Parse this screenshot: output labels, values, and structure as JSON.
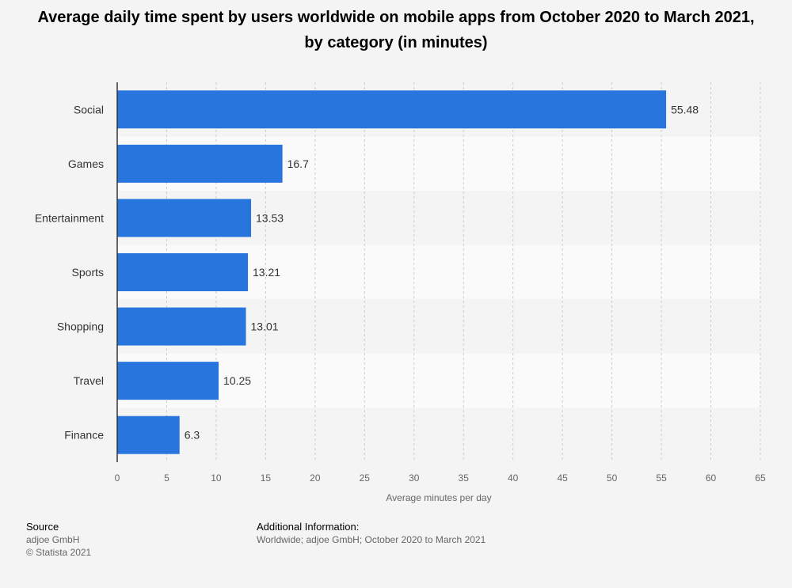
{
  "chart_data": {
    "type": "bar",
    "orientation": "horizontal",
    "title": "Average daily time spent by users worldwide on mobile apps from October 2020 to March 2021, by category (in minutes)",
    "categories": [
      "Social",
      "Games",
      "Entertainment",
      "Sports",
      "Shopping",
      "Travel",
      "Finance"
    ],
    "values": [
      55.48,
      16.7,
      13.53,
      13.21,
      13.01,
      10.25,
      6.3
    ],
    "value_labels": [
      "55.48",
      "16.7",
      "13.53",
      "13.21",
      "13.01",
      "10.25",
      "6.3"
    ],
    "xlabel": "Average minutes per day",
    "ylabel": "",
    "xlim": [
      0,
      65
    ],
    "xticks": [
      0,
      5,
      10,
      15,
      20,
      25,
      30,
      35,
      40,
      45,
      50,
      55,
      60,
      65
    ],
    "grid": true,
    "bar_color": "#2876dd"
  },
  "footer": {
    "source_heading": "Source",
    "source_lines": [
      "adjoe GmbH",
      "© Statista 2021"
    ],
    "info_heading": "Additional Information:",
    "info_text": "Worldwide; adjoe GmbH; October 2020 to March 2021"
  }
}
